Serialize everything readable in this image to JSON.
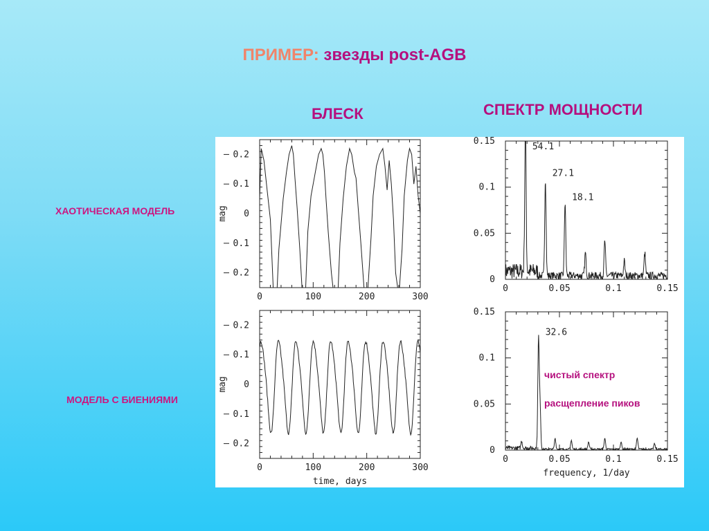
{
  "title": {
    "prefix": "ПРИМЕР:",
    "rest": "звезды post-AGB"
  },
  "column_headers": {
    "left": "БЛЕСК",
    "right": "СПЕКТР МОЩНОСТИ"
  },
  "row_labels": {
    "top": "ХАОТИЧЕСКАЯ МОДЕЛЬ",
    "bottom": "МОДЕЛЬ С БИЕНИЯМИ"
  },
  "annotations": {
    "clean": "чистый спектр",
    "split": "расщепление пиков"
  },
  "colors": {
    "title_prefix": "#f0846a",
    "title_main": "#b5107e",
    "labels": "#cc1680",
    "line": "#222222"
  },
  "chart_data": [
    {
      "type": "line",
      "name": "chaotic light curve",
      "xlabel": "",
      "ylabel": "mag",
      "xlim": [
        0,
        300
      ],
      "ylim": [
        -0.25,
        0.25
      ],
      "xticks": [
        "0",
        "100",
        "200",
        "300"
      ],
      "yticks": [
        "0.2",
        "0.1",
        "0",
        "0.1",
        "0.2"
      ],
      "x": [
        0,
        3,
        8,
        14,
        20,
        26,
        32,
        36,
        44,
        50,
        55,
        60,
        63,
        66,
        70,
        75,
        80,
        86,
        90,
        96,
        104,
        110,
        115,
        118,
        121,
        124,
        128,
        134,
        140,
        146,
        150,
        156,
        162,
        168,
        172,
        177,
        180,
        184,
        189,
        196,
        202,
        208,
        212,
        218,
        224,
        230,
        234,
        238,
        242,
        246,
        250,
        254,
        260,
        266,
        270,
        276,
        280,
        284,
        288,
        292,
        296,
        300
      ],
      "y": [
        0.05,
        0.22,
        0.18,
        0.08,
        -0.02,
        -0.28,
        -0.28,
        -0.12,
        0.05,
        0.14,
        0.2,
        0.23,
        0.2,
        0.12,
        0.02,
        -0.12,
        -0.28,
        -0.25,
        -0.06,
        0.06,
        0.14,
        0.2,
        0.22,
        0.2,
        0.14,
        0.05,
        -0.06,
        -0.2,
        -0.3,
        -0.28,
        -0.1,
        0.05,
        0.16,
        0.22,
        0.2,
        0.14,
        0.12,
        0.02,
        -0.1,
        -0.28,
        -0.26,
        -0.08,
        0.06,
        0.16,
        0.2,
        0.22,
        0.16,
        0.08,
        0.18,
        0.1,
        -0.02,
        -0.2,
        -0.28,
        -0.12,
        0.06,
        0.18,
        0.22,
        0.2,
        0.1,
        0.16,
        0.06,
        0.0
      ]
    },
    {
      "type": "line",
      "name": "chaotic power spectrum",
      "xlabel": "",
      "ylabel": "",
      "xlim": [
        0,
        0.15
      ],
      "ylim": [
        0,
        0.15
      ],
      "xticks": [
        "0",
        "0.05",
        "0.1",
        "0.15"
      ],
      "yticks": [
        "0.15",
        "0.1",
        "0.05",
        "0"
      ],
      "peaks": [
        {
          "x": 0.0185,
          "y": 0.16,
          "label": "54.1"
        },
        {
          "x": 0.037,
          "y": 0.106,
          "label": "27.1"
        },
        {
          "x": 0.0552,
          "y": 0.08,
          "label": "18.1"
        },
        {
          "x": 0.074,
          "y": 0.025
        },
        {
          "x": 0.092,
          "y": 0.038
        },
        {
          "x": 0.11,
          "y": 0.016
        },
        {
          "x": 0.129,
          "y": 0.025
        }
      ],
      "noise_level": 0.008
    },
    {
      "type": "line",
      "name": "beat light curve",
      "xlabel": "time, days",
      "ylabel": "mag",
      "xlim": [
        0,
        300
      ],
      "ylim": [
        -0.25,
        0.25
      ],
      "xticks": [
        "0",
        "100",
        "200",
        "300"
      ],
      "yticks": [
        "0.2",
        "0.1",
        "0",
        "0.1",
        "0.2"
      ],
      "period": 32.6,
      "amplitude": 0.15,
      "phase": 0.8
    },
    {
      "type": "line",
      "name": "beat power spectrum",
      "xlabel": "frequency, 1/day",
      "ylabel": "",
      "xlim": [
        0,
        0.15
      ],
      "ylim": [
        0,
        0.15
      ],
      "xticks": [
        "0",
        "0.05",
        "0.1",
        "0.15"
      ],
      "yticks": [
        "0.15",
        "0.1",
        "0.05",
        "0"
      ],
      "peaks": [
        {
          "x": 0.0306,
          "y": 0.119,
          "label": "32.6"
        },
        {
          "x": 0.032,
          "y": 0.05
        },
        {
          "x": 0.015,
          "y": 0.008
        },
        {
          "x": 0.046,
          "y": 0.012
        },
        {
          "x": 0.061,
          "y": 0.01
        },
        {
          "x": 0.077,
          "y": 0.008
        },
        {
          "x": 0.092,
          "y": 0.012
        },
        {
          "x": 0.107,
          "y": 0.008
        },
        {
          "x": 0.122,
          "y": 0.012
        },
        {
          "x": 0.138,
          "y": 0.006
        }
      ],
      "noise_level": 0.002
    }
  ]
}
